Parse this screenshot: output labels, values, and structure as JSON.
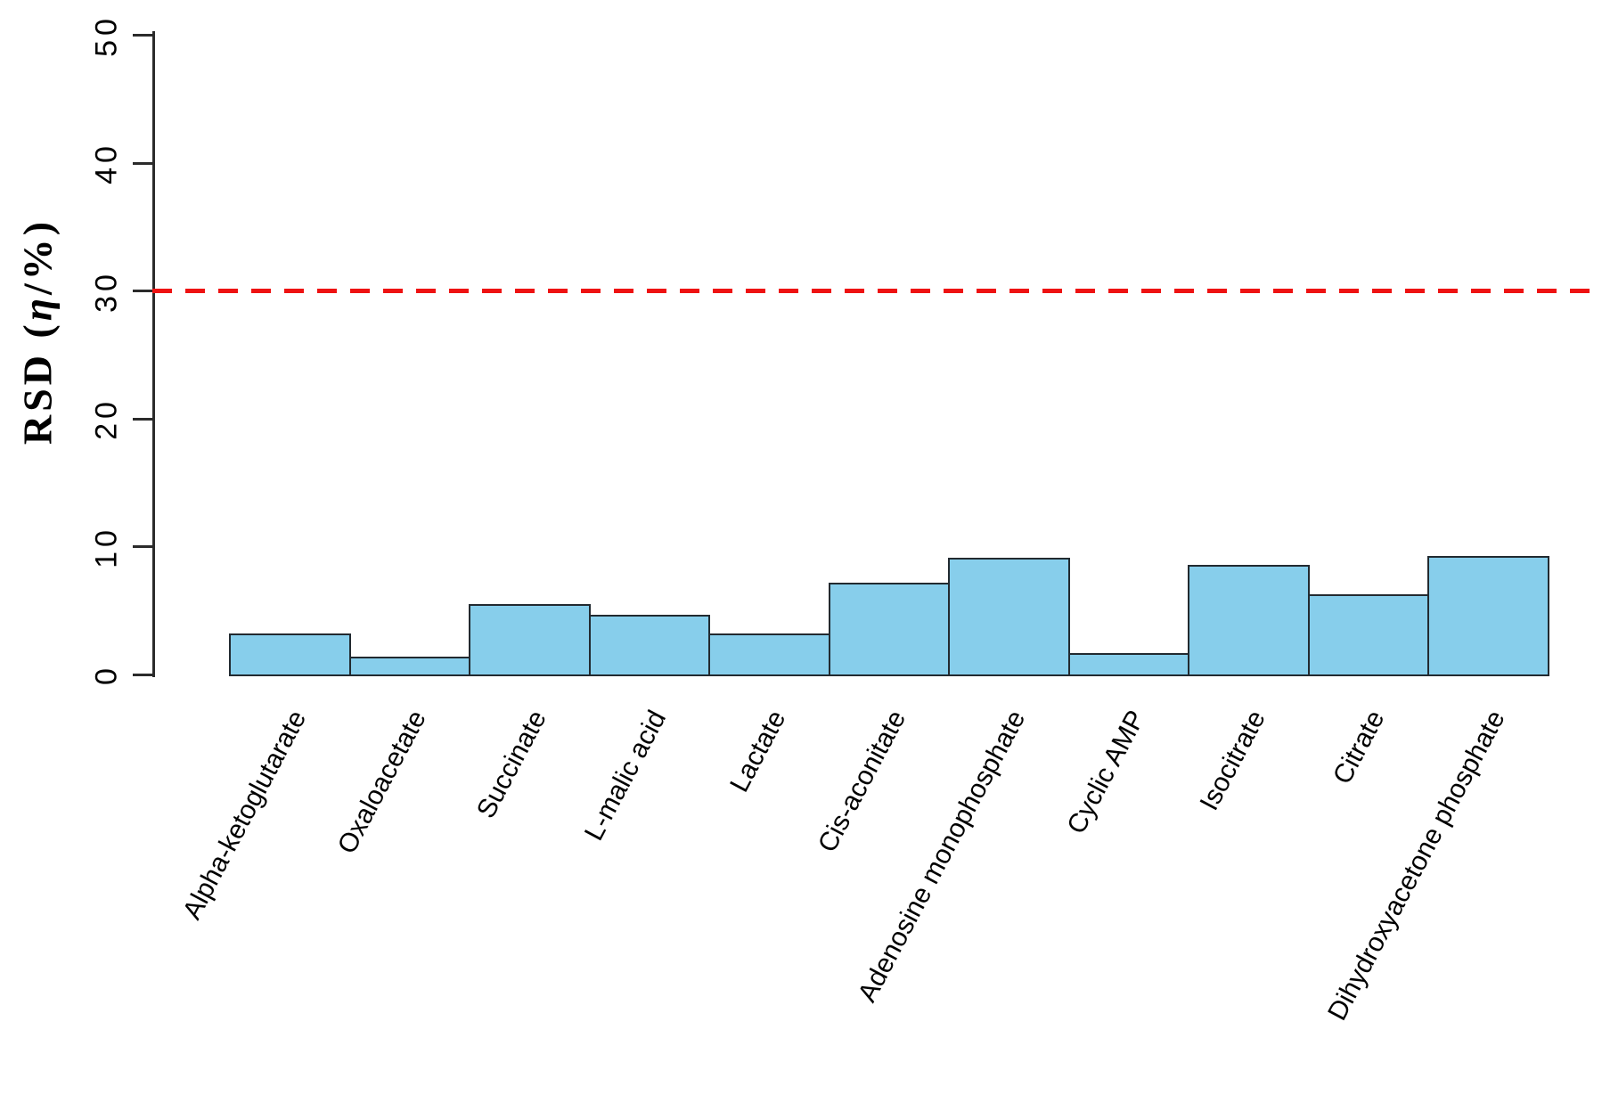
{
  "chart_data": {
    "type": "bar",
    "title": "",
    "xlabel": "",
    "ylabel": "RSD (η/%)",
    "ylabel_segments": [
      {
        "text": "RSD ("
      },
      {
        "text": "η",
        "italic": true
      },
      {
        "text": "/%)"
      }
    ],
    "categories": [
      "Alpha-ketoglutarate",
      "Oxaloacetate",
      "Succinate",
      "L-malic acid",
      "Lactate",
      "Cis-aconitate",
      "Adenosine monophosphate",
      "Cyclic AMP",
      "Isocitrate",
      "Citrate",
      "Dihydroxyacetone phosphate"
    ],
    "values": [
      3.2,
      1.4,
      5.5,
      4.7,
      3.2,
      7.2,
      9.1,
      1.7,
      8.6,
      6.3,
      9.3
    ],
    "yticks": [
      0,
      10,
      20,
      30,
      40,
      50
    ],
    "ytick_labels": [
      "0",
      "10",
      "20",
      "30",
      "40",
      "50"
    ],
    "ylim": [
      0,
      50
    ],
    "grid": false,
    "legend": null,
    "reference_line": {
      "value": 30,
      "style": "dashed",
      "color": "#ee1212"
    },
    "colors": {
      "bar_fill": "#87CEEB",
      "bar_border": "#222a30",
      "axis": "#2b2b2b",
      "background": "#ffffff",
      "text": "#000000"
    }
  }
}
